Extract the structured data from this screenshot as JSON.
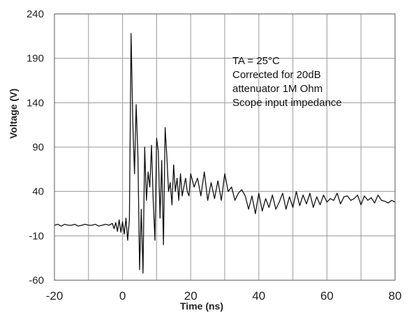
{
  "chart_data": {
    "type": "line",
    "xlabel": "Time  (ns)",
    "ylabel": "Voltage (V)",
    "xlim": [
      -20,
      80
    ],
    "ylim": [
      -60,
      240
    ],
    "x_ticks": [
      -20,
      0,
      20,
      40,
      60,
      80
    ],
    "y_ticks": [
      -60,
      -10,
      40,
      90,
      140,
      190,
      240
    ],
    "x_grid_step": 10,
    "grid": true,
    "annotation": {
      "lines": [
        "TA = 25°C",
        "Corrected for 20dB",
        "attenuator 1M Ohm",
        "Scope input impedance"
      ],
      "position": "top-right"
    },
    "series": [
      {
        "color": "#111111",
        "x": [
          -20,
          -19,
          -18,
          -17,
          -16,
          -15,
          -14,
          -13,
          -12,
          -11,
          -10,
          -9,
          -8,
          -7,
          -6,
          -5,
          -4,
          -3,
          -2.5,
          -2,
          -1.5,
          -1,
          -0.5,
          0,
          0.5,
          1,
          1.5,
          2,
          2.5,
          3,
          3.5,
          4,
          4.5,
          5,
          5.5,
          6,
          6.5,
          7,
          7.5,
          8,
          8.5,
          9,
          9.5,
          10,
          10.5,
          11,
          11.5,
          12,
          12.5,
          13,
          13.5,
          14,
          14.5,
          15,
          15.5,
          16,
          16.5,
          17,
          17.5,
          18,
          18.5,
          19,
          19.5,
          20,
          21,
          22,
          23,
          24,
          25,
          26,
          27,
          28,
          29,
          30,
          31,
          32,
          33,
          34,
          35,
          36,
          37,
          38,
          39,
          40,
          41,
          42,
          43,
          44,
          45,
          46,
          47,
          48,
          49,
          50,
          51,
          52,
          53,
          54,
          55,
          56,
          57,
          58,
          59,
          60,
          61,
          62,
          63,
          64,
          65,
          66,
          67,
          68,
          69,
          70,
          71,
          72,
          73,
          74,
          75,
          76,
          77,
          78,
          79,
          80
        ],
        "values": [
          2,
          3,
          1,
          3,
          2,
          2,
          3,
          1,
          2,
          3,
          2,
          2,
          3,
          1,
          2,
          3,
          2,
          4,
          -2,
          5,
          -5,
          8,
          -6,
          6,
          -8,
          10,
          -15,
          8,
          218,
          120,
          60,
          138,
          80,
          -48,
          20,
          -52,
          90,
          30,
          62,
          45,
          92,
          30,
          -15,
          100,
          85,
          10,
          75,
          -20,
          112,
          80,
          40,
          50,
          25,
          70,
          40,
          55,
          30,
          60,
          35,
          45,
          55,
          40,
          35,
          60,
          45,
          55,
          35,
          62,
          30,
          50,
          32,
          52,
          30,
          60,
          40,
          45,
          30,
          38,
          42,
          35,
          20,
          35,
          15,
          38,
          18,
          32,
          22,
          36,
          20,
          28,
          38,
          20,
          34,
          22,
          40,
          24,
          36,
          26,
          38,
          22,
          34,
          25,
          36,
          28,
          32,
          30,
          38,
          26,
          34,
          35,
          30,
          32,
          36,
          25,
          35,
          30,
          33,
          27,
          36,
          30,
          29,
          27,
          30,
          28
        ]
      }
    ]
  }
}
